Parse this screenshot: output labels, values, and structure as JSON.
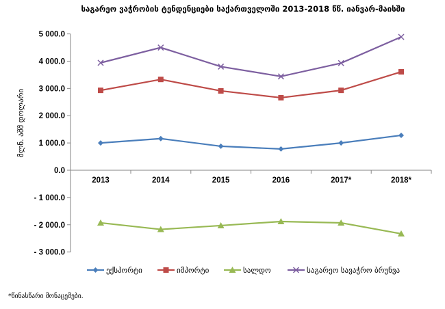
{
  "chart_data": {
    "type": "line",
    "title": "საგარეო ვაჭრობის ტენდენციები საქართველოში 2013-2018 წწ. იანვარ-მაისში",
    "xlabel": "",
    "ylabel": "მლნ. აშშ დოლარი",
    "categories": [
      "2013",
      "2014",
      "2015",
      "2016",
      "2017*",
      "2018*"
    ],
    "ylim": [
      -3000,
      5000
    ],
    "yticks": [
      "5 000.0",
      "4 000.0",
      "3 000.0",
      "2 000.0",
      "1 000.0",
      "0.0",
      "- 1 000.0",
      "- 2 000.0",
      "- 3 000.0"
    ],
    "ytick_values": [
      5000,
      4000,
      3000,
      2000,
      1000,
      0,
      -1000,
      -2000,
      -3000
    ],
    "grid": false,
    "legend_position": "bottom",
    "series": [
      {
        "name": "ექსპორტი",
        "color": "#4a7ebb",
        "marker": "diamond",
        "values": [
          1000,
          1160,
          880,
          780,
          1000,
          1280
        ]
      },
      {
        "name": "იმპორტი",
        "color": "#be4b48",
        "marker": "square",
        "values": [
          2930,
          3330,
          2910,
          2660,
          2930,
          3610
        ]
      },
      {
        "name": "სალდო",
        "color": "#98b954",
        "marker": "triangle",
        "values": [
          -1930,
          -2170,
          -2030,
          -1880,
          -1930,
          -2330
        ]
      },
      {
        "name": "საგარეო სავაჭრო ბრუნვა",
        "color": "#7d5fa0",
        "marker": "x",
        "values": [
          3940,
          4500,
          3800,
          3440,
          3930,
          4890
        ]
      }
    ]
  },
  "footnote": "*წინასწარი მონაცემები."
}
